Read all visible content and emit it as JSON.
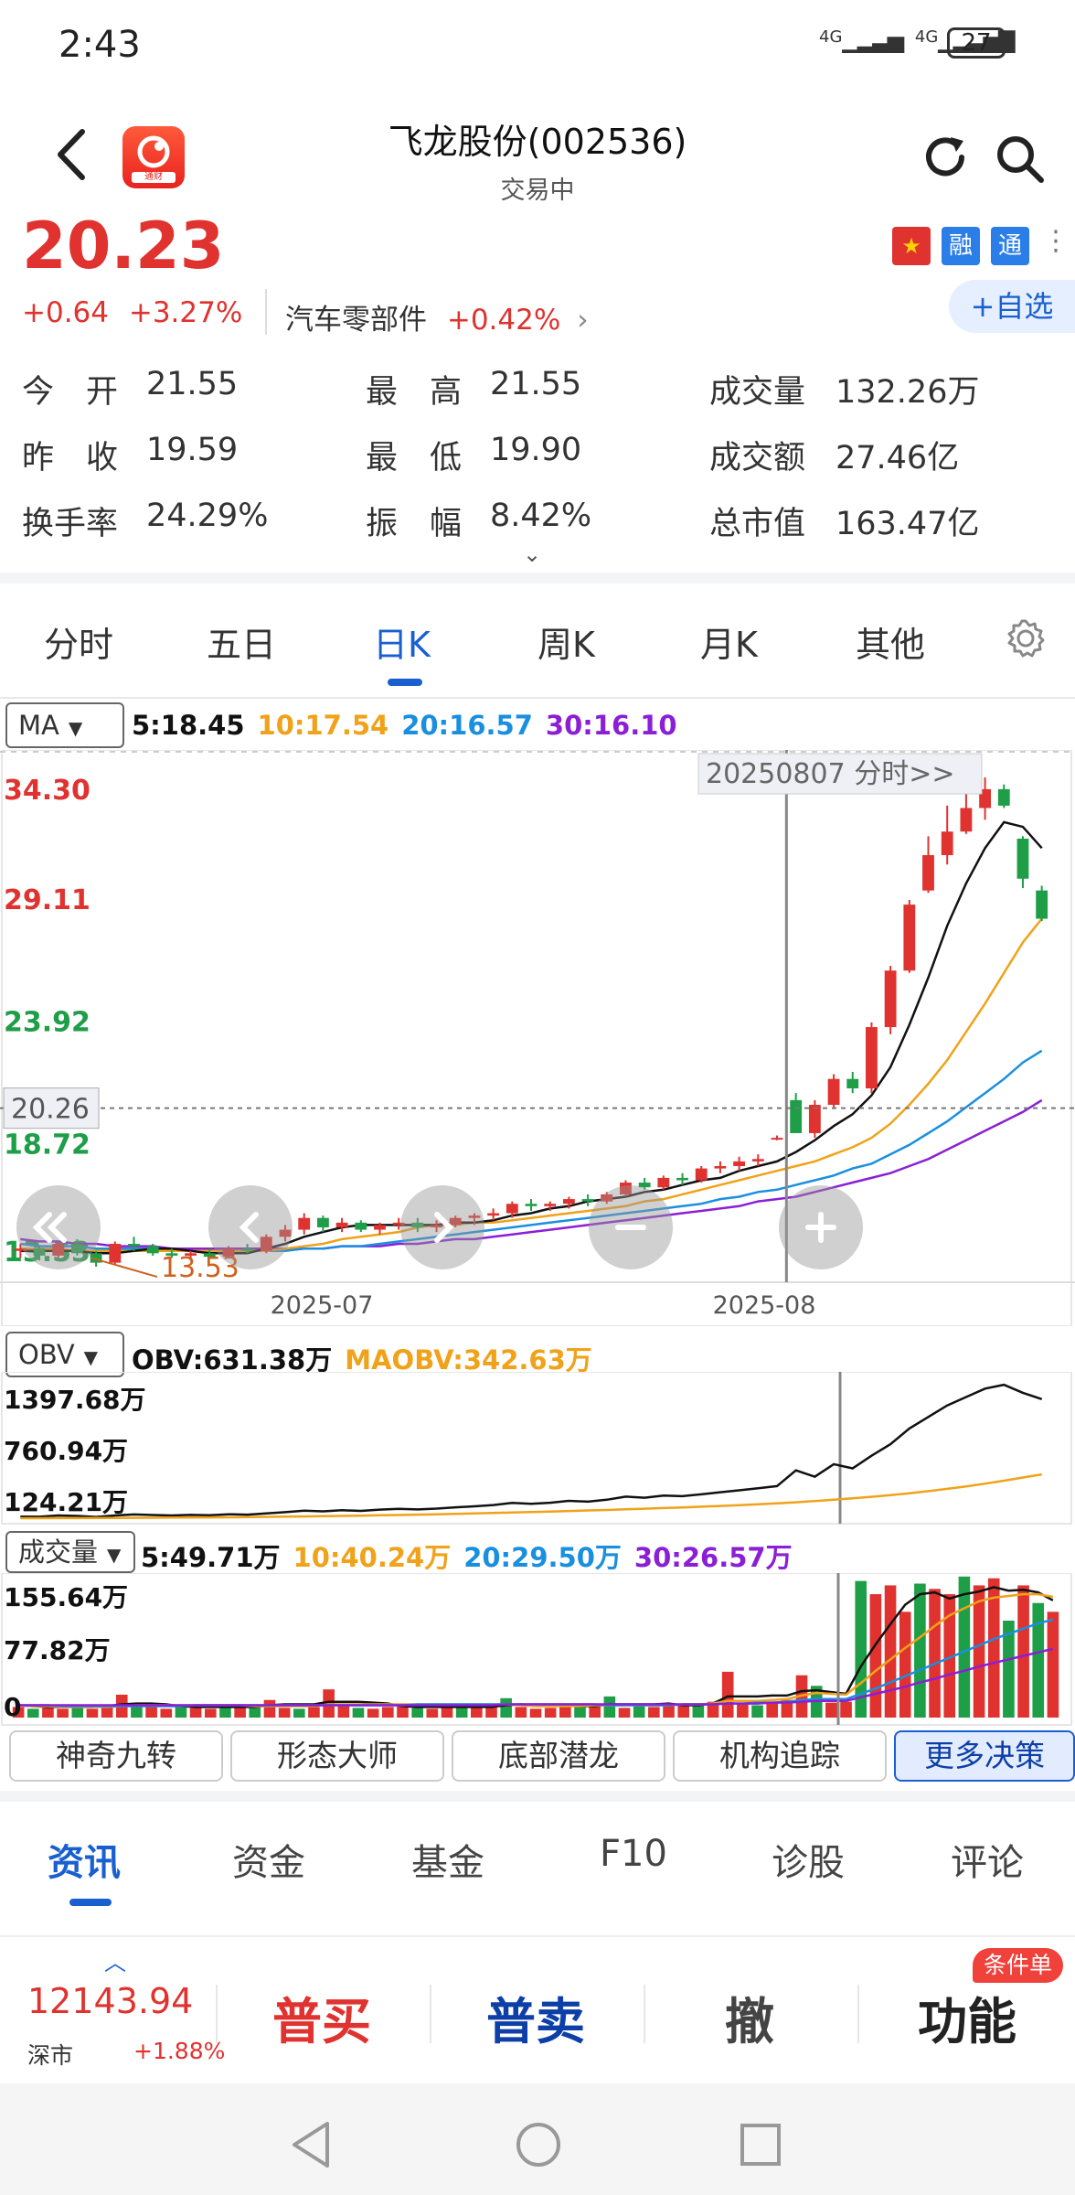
{
  "status_bar": {
    "time": "2:43",
    "network_1": "4G",
    "network_2": "4G",
    "battery": "27"
  },
  "header": {
    "title": "飞龙股份(002536)",
    "status": "交易中",
    "logo_text": "通财"
  },
  "price": {
    "last": "20.23",
    "change": "+0.64",
    "change_pct": "+3.27%",
    "sector": "汽车零部件",
    "sector_change": "+0.42%",
    "sector_arrow": "›"
  },
  "tags": {
    "flag": "★",
    "rong": "融",
    "tong": "通",
    "more": "⋮"
  },
  "add_watchlist": "+自选",
  "quotes": [
    {
      "label": "今　开",
      "value": "21.55",
      "value_color": "#333333"
    },
    {
      "label": "最　高",
      "value": "21.55",
      "value_color": "#333333"
    },
    {
      "label": "成交量",
      "value": "132.26万",
      "value_color": "#333333"
    },
    {
      "label": "昨　收",
      "value": "19.59",
      "value_color": "#333333"
    },
    {
      "label": "最　低",
      "value": "19.90",
      "value_color": "#333333"
    },
    {
      "label": "成交额",
      "value": "27.46亿",
      "value_color": "#333333"
    },
    {
      "label": "换手率",
      "value": "24.29%",
      "value_color": "#333333"
    },
    {
      "label": "振　幅",
      "value": "8.42%",
      "value_color": "#333333"
    },
    {
      "label": "总市值",
      "value": "163.47亿",
      "value_color": "#333333"
    }
  ],
  "expand_chevron": "⌄",
  "k_tabs": [
    "分时",
    "五日",
    "日K",
    "周K",
    "月K",
    "其他"
  ],
  "active_k_tab": 2,
  "main_chart": {
    "selector": "MA",
    "legend": [
      {
        "text": "5:18.45",
        "color": "#111111"
      },
      {
        "text": "10:17.54",
        "color": "#f0a21a"
      },
      {
        "text": "20:16.57",
        "color": "#1a8fe0"
      },
      {
        "text": "30:16.10",
        "color": "#8b1fd6"
      }
    ],
    "y_labels": [
      {
        "text": "34.30",
        "color": "#e0322f"
      },
      {
        "text": "29.11",
        "color": "#e0322f"
      },
      {
        "text": "23.92",
        "color": "#1f9e48"
      },
      {
        "text": "18.72",
        "color": "#1f9e48"
      },
      {
        "text": "13.53",
        "color": "#1f9e48"
      }
    ],
    "crosshair_price": "20.26",
    "crosshair_date_label": "20250807 分时>>",
    "low_marker": "13.53",
    "x_labels": [
      "2025-07",
      "2025-08"
    ]
  },
  "chart_data": [
    {
      "type": "candlestick",
      "title": "",
      "ylim": [
        13.53,
        34.3
      ],
      "x_labels": [
        "2025-07",
        "2025-08"
      ],
      "candles": [
        [
          14.2,
          14.5,
          13.9,
          14.3
        ],
        [
          14.3,
          14.4,
          13.8,
          14.0
        ],
        [
          14.0,
          14.6,
          13.9,
          14.5
        ],
        [
          14.5,
          14.7,
          14.0,
          14.1
        ],
        [
          14.1,
          14.2,
          13.53,
          13.7
        ],
        [
          13.7,
          14.6,
          13.6,
          14.5
        ],
        [
          14.5,
          14.8,
          14.2,
          14.4
        ],
        [
          14.4,
          14.5,
          14.0,
          14.1
        ],
        [
          14.1,
          14.3,
          13.9,
          14.0
        ],
        [
          14.0,
          14.2,
          13.8,
          14.1
        ],
        [
          14.1,
          14.3,
          13.9,
          13.95
        ],
        [
          13.95,
          14.4,
          13.9,
          14.3
        ],
        [
          14.3,
          14.5,
          14.1,
          14.2
        ],
        [
          14.2,
          14.9,
          14.1,
          14.8
        ],
        [
          14.8,
          15.3,
          14.6,
          15.1
        ],
        [
          15.1,
          15.8,
          14.9,
          15.6
        ],
        [
          15.6,
          15.7,
          15.0,
          15.2
        ],
        [
          15.2,
          15.6,
          15.0,
          15.4
        ],
        [
          15.4,
          15.5,
          15.0,
          15.1
        ],
        [
          15.1,
          15.4,
          14.9,
          15.3
        ],
        [
          15.3,
          15.6,
          15.1,
          15.4
        ],
        [
          15.4,
          15.6,
          15.0,
          15.2
        ],
        [
          15.2,
          15.5,
          15.0,
          15.3
        ],
        [
          15.3,
          15.7,
          15.2,
          15.6
        ],
        [
          15.6,
          15.8,
          15.3,
          15.7
        ],
        [
          15.7,
          16.0,
          15.5,
          15.8
        ],
        [
          15.8,
          16.3,
          15.6,
          16.2
        ],
        [
          16.2,
          16.4,
          15.9,
          16.1
        ],
        [
          16.1,
          16.3,
          15.9,
          16.2
        ],
        [
          16.2,
          16.5,
          16.0,
          16.4
        ],
        [
          16.4,
          16.6,
          16.1,
          16.3
        ],
        [
          16.3,
          16.7,
          16.2,
          16.6
        ],
        [
          16.6,
          17.2,
          16.5,
          17.1
        ],
        [
          17.1,
          17.3,
          16.8,
          16.9
        ],
        [
          16.9,
          17.4,
          16.8,
          17.3
        ],
        [
          17.3,
          17.5,
          17.0,
          17.2
        ],
        [
          17.2,
          17.8,
          17.1,
          17.7
        ],
        [
          17.7,
          18.0,
          17.5,
          17.8
        ],
        [
          17.8,
          18.2,
          17.6,
          18.0
        ],
        [
          18.0,
          18.3,
          17.8,
          18.1
        ],
        [
          19.0,
          19.1,
          18.9,
          19.0
        ],
        [
          20.6,
          20.9,
          19.2,
          19.2
        ],
        [
          19.2,
          20.6,
          19.0,
          20.4
        ],
        [
          20.4,
          21.7,
          20.3,
          21.5
        ],
        [
          21.5,
          21.8,
          20.9,
          21.1
        ],
        [
          21.1,
          23.9,
          20.9,
          23.7
        ],
        [
          23.7,
          26.3,
          23.4,
          26.1
        ],
        [
          26.1,
          29.1,
          26.0,
          28.9
        ],
        [
          29.5,
          31.8,
          29.4,
          31.0
        ],
        [
          31.0,
          33.1,
          30.6,
          32.0
        ],
        [
          32.0,
          33.8,
          31.9,
          33.0
        ],
        [
          33.0,
          34.3,
          32.5,
          33.8
        ],
        [
          33.8,
          34.0,
          33.0,
          33.1
        ],
        [
          31.7,
          31.8,
          29.6,
          30.0
        ],
        [
          29.5,
          29.7,
          28.2,
          28.3
        ]
      ],
      "ma5": [
        14.2,
        14.2,
        14.2,
        14.2,
        14.1,
        14.1,
        14.2,
        14.3,
        14.3,
        14.2,
        14.1,
        14.1,
        14.1,
        14.3,
        14.5,
        14.8,
        15.0,
        15.2,
        15.3,
        15.3,
        15.3,
        15.3,
        15.3,
        15.4,
        15.4,
        15.5,
        15.7,
        15.8,
        16.0,
        16.1,
        16.3,
        16.4,
        16.5,
        16.7,
        16.8,
        17.0,
        17.2,
        17.3,
        17.6,
        17.8,
        18.0,
        18.4,
        18.9,
        19.5,
        20.0,
        20.8,
        22.0,
        23.8,
        25.8,
        28.0,
        29.8,
        31.3,
        32.4,
        32.2,
        31.3
      ],
      "ma10": [
        14.3,
        14.3,
        14.3,
        14.2,
        14.2,
        14.2,
        14.2,
        14.2,
        14.2,
        14.2,
        14.2,
        14.2,
        14.2,
        14.2,
        14.3,
        14.4,
        14.5,
        14.7,
        14.8,
        14.9,
        15.0,
        15.2,
        15.3,
        15.3,
        15.4,
        15.4,
        15.5,
        15.6,
        15.7,
        15.8,
        15.9,
        16.0,
        16.1,
        16.3,
        16.4,
        16.6,
        16.8,
        17.0,
        17.2,
        17.4,
        17.6,
        17.8,
        18.0,
        18.3,
        18.6,
        19.0,
        19.6,
        20.4,
        21.3,
        22.3,
        23.5,
        24.7,
        26.0,
        27.3,
        28.3
      ],
      "ma20": [
        14.5,
        14.4,
        14.4,
        14.4,
        14.3,
        14.3,
        14.3,
        14.3,
        14.2,
        14.2,
        14.2,
        14.2,
        14.2,
        14.2,
        14.2,
        14.3,
        14.3,
        14.4,
        14.4,
        14.5,
        14.6,
        14.7,
        14.8,
        14.9,
        15.0,
        15.1,
        15.2,
        15.3,
        15.4,
        15.5,
        15.6,
        15.7,
        15.8,
        15.9,
        16.0,
        16.1,
        16.2,
        16.4,
        16.5,
        16.7,
        16.8,
        17.0,
        17.2,
        17.4,
        17.7,
        17.9,
        18.3,
        18.7,
        19.2,
        19.7,
        20.3,
        20.9,
        21.5,
        22.2,
        22.7
      ],
      "ma30": [
        14.7,
        14.6,
        14.6,
        14.5,
        14.5,
        14.4,
        14.4,
        14.4,
        14.3,
        14.3,
        14.3,
        14.3,
        14.3,
        14.3,
        14.3,
        14.3,
        14.3,
        14.4,
        14.4,
        14.4,
        14.5,
        14.5,
        14.6,
        14.7,
        14.7,
        14.8,
        14.9,
        15.0,
        15.1,
        15.2,
        15.3,
        15.4,
        15.5,
        15.6,
        15.7,
        15.8,
        15.9,
        16.0,
        16.1,
        16.3,
        16.4,
        16.5,
        16.7,
        16.9,
        17.1,
        17.3,
        17.5,
        17.8,
        18.1,
        18.5,
        18.9,
        19.3,
        19.7,
        20.1,
        20.6
      ]
    },
    {
      "type": "line",
      "title": "",
      "ylim": [
        124.21,
        1397.68
      ],
      "series": [
        {
          "name": "OBV",
          "values": [
            140,
            138,
            150,
            146,
            136,
            150,
            160,
            155,
            150,
            156,
            152,
            162,
            158,
            170,
            182,
            196,
            190,
            200,
            194,
            206,
            214,
            208,
            216,
            228,
            238,
            250,
            270,
            262,
            272,
            290,
            282,
            300,
            330,
            320,
            340,
            334,
            352,
            372,
            390,
            410,
            430,
            580,
            520,
            640,
            600,
            720,
            830,
            980,
            1090,
            1200,
            1280,
            1360,
            1397,
            1320,
            1260
          ]
        },
        {
          "name": "MAOBV",
          "values": [
            124,
            124,
            125,
            125,
            126,
            127,
            128,
            129,
            130,
            131,
            132,
            133,
            135,
            137,
            139,
            141,
            143,
            146,
            149,
            152,
            155,
            158,
            162,
            166,
            170,
            174,
            178,
            183,
            188,
            193,
            198,
            203,
            209,
            215,
            221,
            227,
            234,
            241,
            249,
            257,
            266,
            276,
            288,
            300,
            314,
            328,
            344,
            362,
            382,
            404,
            428,
            454,
            482,
            512,
            542
          ]
        }
      ]
    },
    {
      "type": "bar",
      "title": "",
      "ylim": [
        0,
        155.64
      ],
      "values": [
        12,
        10,
        11,
        10,
        13,
        10,
        14,
        26,
        15,
        12,
        10,
        13,
        11,
        10,
        12,
        11,
        13,
        20,
        11,
        10,
        12,
        32,
        14,
        11,
        10,
        12,
        13,
        11,
        10,
        12,
        14,
        11,
        13,
        22,
        12,
        10,
        11,
        12,
        14,
        13,
        24,
        11,
        13,
        12,
        14,
        16,
        15,
        18,
        52,
        16,
        14,
        17,
        20,
        48,
        36,
        17,
        18,
        155,
        140,
        150,
        120,
        152,
        146,
        140,
        160,
        150,
        158,
        110,
        150,
        130,
        120
      ],
      "ma_lines": [
        {
          "name": "5",
          "value_label": "5:49.71万",
          "values": [
            14,
            13,
            12,
            12,
            12,
            12,
            13,
            15,
            16,
            16,
            15,
            13,
            12,
            12,
            12,
            12,
            12,
            14,
            15,
            15,
            15,
            18,
            18,
            18,
            17,
            16,
            13,
            12,
            12,
            12,
            12,
            12,
            12,
            14,
            15,
            14,
            14,
            14,
            13,
            13,
            15,
            15,
            15,
            15,
            16,
            14,
            14,
            16,
            24,
            24,
            24,
            25,
            25,
            30,
            31,
            29,
            27,
            58,
            83,
            106,
            128,
            140,
            142,
            135,
            140,
            143,
            148,
            144,
            145,
            142,
            133
          ]
        },
        {
          "name": "10",
          "value_label": "10:40.24万",
          "values": [
            14,
            13,
            13,
            12,
            12,
            12,
            12,
            13,
            14,
            14,
            14,
            14,
            14,
            14,
            14,
            14,
            13,
            13,
            13,
            13,
            13,
            15,
            15,
            15,
            15,
            15,
            15,
            15,
            15,
            15,
            15,
            15,
            15,
            15,
            14,
            13,
            13,
            13,
            13,
            14,
            14,
            14,
            14,
            14,
            14,
            15,
            15,
            16,
            19,
            19,
            19,
            20,
            21,
            25,
            28,
            27,
            26,
            39,
            53,
            66,
            79,
            91,
            104,
            116,
            124,
            132,
            136,
            138,
            140,
            140,
            137
          ]
        },
        {
          "name": "20",
          "value_label": "20:29.50万",
          "values": [
            14,
            14,
            14,
            13,
            13,
            13,
            13,
            13,
            13,
            13,
            13,
            13,
            14,
            14,
            14,
            14,
            14,
            14,
            14,
            14,
            14,
            14,
            14,
            14,
            14,
            14,
            14,
            15,
            15,
            15,
            15,
            15,
            15,
            15,
            15,
            15,
            15,
            15,
            15,
            15,
            14,
            14,
            14,
            14,
            14,
            15,
            15,
            15,
            16,
            16,
            17,
            17,
            18,
            20,
            21,
            21,
            21,
            27,
            33,
            40,
            47,
            54,
            61,
            68,
            75,
            82,
            89,
            95,
            101,
            107,
            111
          ]
        },
        {
          "name": "30",
          "value_label": "30:26.57万",
          "values": [
            14,
            14,
            14,
            14,
            14,
            14,
            14,
            14,
            14,
            14,
            14,
            14,
            14,
            14,
            14,
            14,
            14,
            14,
            14,
            14,
            14,
            14,
            14,
            14,
            14,
            14,
            14,
            14,
            14,
            14,
            14,
            14,
            14,
            15,
            15,
            15,
            15,
            15,
            15,
            15,
            15,
            15,
            15,
            15,
            15,
            15,
            15,
            15,
            16,
            16,
            16,
            17,
            17,
            18,
            19,
            19,
            19,
            23,
            27,
            31,
            35,
            40,
            44,
            49,
            53,
            58,
            62,
            66,
            70,
            74,
            78
          ]
        }
      ]
    }
  ],
  "obv_chart": {
    "selector": "OBV",
    "legend": [
      {
        "text": "OBV:631.38万",
        "color": "#111111"
      },
      {
        "text": "MAOBV:342.63万",
        "color": "#f0a21a"
      }
    ],
    "y_labels": [
      "1397.68万",
      "760.94万",
      "124.21万"
    ]
  },
  "volume_chart": {
    "selector": "成交量",
    "legend": [
      {
        "text": "5:49.71万",
        "color": "#111111"
      },
      {
        "text": "10:40.24万",
        "color": "#f0a21a"
      },
      {
        "text": "20:29.50万",
        "color": "#1a8fe0"
      },
      {
        "text": "30:26.57万",
        "color": "#8b1fd6"
      }
    ],
    "y_labels": [
      "155.64万",
      "77.82万",
      "0"
    ]
  },
  "strategy_chips": [
    "神奇九转",
    "形态大师",
    "底部潜龙",
    "机构追踪",
    "更多决策"
  ],
  "info_tabs": [
    "资讯",
    "资金",
    "基金",
    "F10",
    "诊股",
    "评论"
  ],
  "bottom_bar": {
    "index_value": "12143.94",
    "index_name": "深市",
    "index_change": "+1.88%",
    "buy": "普买",
    "sell": "普卖",
    "cancel": "撤",
    "function": "功能",
    "badge": "条件单"
  },
  "colors": {
    "up": "#e0322f",
    "down": "#1f9e48",
    "accent": "#1a5fd0"
  }
}
